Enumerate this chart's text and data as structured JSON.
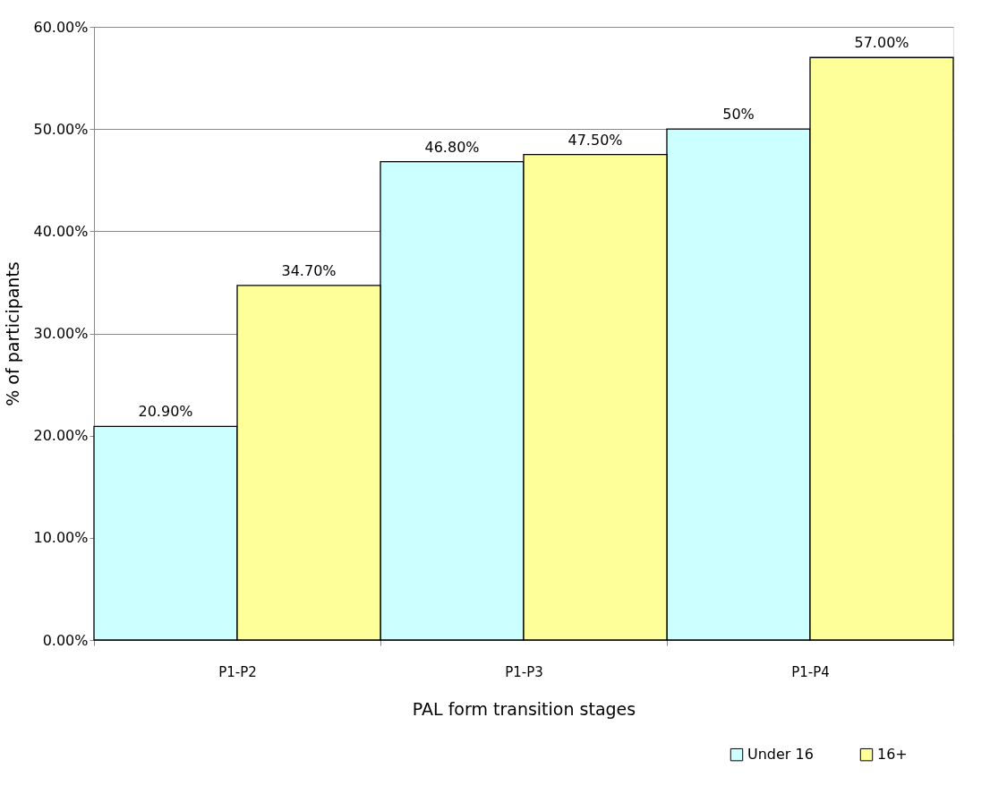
{
  "chart_data": {
    "type": "bar",
    "xlabel": "PAL form transition stages",
    "ylabel": "% of participants",
    "categories": [
      "P1-P2",
      "P1-P3",
      "P1-P4"
    ],
    "series": [
      {
        "name": "Under 16",
        "color": "#ccffff",
        "values": [
          20.9,
          46.8,
          50
        ],
        "value_labels": [
          "20.90%",
          "46.80%",
          "50%"
        ]
      },
      {
        "name": "16+",
        "color": "#ffff99",
        "values": [
          34.7,
          47.5,
          57
        ],
        "value_labels": [
          "34.70%",
          "47.50%",
          "57.00%"
        ]
      }
    ],
    "ylim": [
      0,
      60
    ],
    "yticks": [
      {
        "value": 0,
        "label": "0.00%"
      },
      {
        "value": 10,
        "label": "10.00%"
      },
      {
        "value": 20,
        "label": "20.00%"
      },
      {
        "value": 30,
        "label": "30.00%"
      },
      {
        "value": 40,
        "label": "40.00%"
      },
      {
        "value": 50,
        "label": "50.00%"
      },
      {
        "value": 60,
        "label": "60.00%"
      }
    ],
    "grid": "y",
    "legend": "bottom right"
  }
}
